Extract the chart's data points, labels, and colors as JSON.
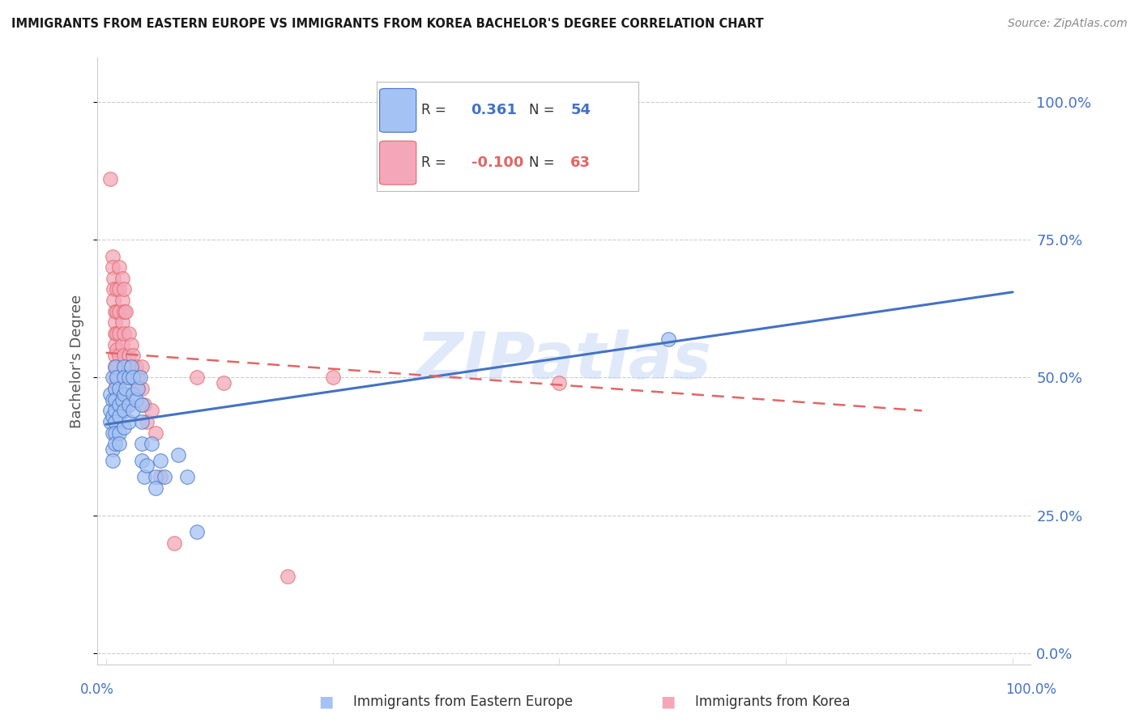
{
  "title": "IMMIGRANTS FROM EASTERN EUROPE VS IMMIGRANTS FROM KOREA BACHELOR'S DEGREE CORRELATION CHART",
  "source": "Source: ZipAtlas.com",
  "ylabel": "Bachelor's Degree",
  "watermark": "ZIPatlas",
  "legend_blue_r": "0.361",
  "legend_blue_n": "54",
  "legend_pink_r": "-0.100",
  "legend_pink_n": "63",
  "legend_label_blue": "Immigrants from Eastern Europe",
  "legend_label_pink": "Immigrants from Korea",
  "blue_fill": "#a4c2f4",
  "blue_edge": "#4472c4",
  "pink_fill": "#f4a7b9",
  "pink_edge": "#e06666",
  "axis_color": "#4472c4",
  "grid_color": "#cccccc",
  "blue_line_color": "#4472c4",
  "pink_line_color": "#e06666",
  "blue_scatter": [
    [
      0.005,
      0.44
    ],
    [
      0.005,
      0.47
    ],
    [
      0.005,
      0.42
    ],
    [
      0.007,
      0.5
    ],
    [
      0.007,
      0.46
    ],
    [
      0.007,
      0.43
    ],
    [
      0.007,
      0.4
    ],
    [
      0.007,
      0.37
    ],
    [
      0.007,
      0.35
    ],
    [
      0.01,
      0.52
    ],
    [
      0.01,
      0.48
    ],
    [
      0.01,
      0.46
    ],
    [
      0.01,
      0.44
    ],
    [
      0.01,
      0.42
    ],
    [
      0.01,
      0.4
    ],
    [
      0.01,
      0.38
    ],
    [
      0.012,
      0.5
    ],
    [
      0.015,
      0.48
    ],
    [
      0.015,
      0.45
    ],
    [
      0.015,
      0.43
    ],
    [
      0.015,
      0.4
    ],
    [
      0.015,
      0.38
    ],
    [
      0.018,
      0.46
    ],
    [
      0.02,
      0.52
    ],
    [
      0.02,
      0.5
    ],
    [
      0.02,
      0.47
    ],
    [
      0.02,
      0.44
    ],
    [
      0.02,
      0.41
    ],
    [
      0.022,
      0.48
    ],
    [
      0.025,
      0.5
    ],
    [
      0.025,
      0.45
    ],
    [
      0.025,
      0.42
    ],
    [
      0.028,
      0.52
    ],
    [
      0.03,
      0.5
    ],
    [
      0.03,
      0.47
    ],
    [
      0.03,
      0.44
    ],
    [
      0.033,
      0.46
    ],
    [
      0.035,
      0.48
    ],
    [
      0.038,
      0.5
    ],
    [
      0.04,
      0.45
    ],
    [
      0.04,
      0.42
    ],
    [
      0.04,
      0.38
    ],
    [
      0.04,
      0.35
    ],
    [
      0.042,
      0.32
    ],
    [
      0.045,
      0.34
    ],
    [
      0.05,
      0.38
    ],
    [
      0.055,
      0.32
    ],
    [
      0.055,
      0.3
    ],
    [
      0.06,
      0.35
    ],
    [
      0.065,
      0.32
    ],
    [
      0.08,
      0.36
    ],
    [
      0.09,
      0.32
    ],
    [
      0.1,
      0.22
    ],
    [
      0.62,
      0.57
    ]
  ],
  "pink_scatter": [
    [
      0.005,
      0.86
    ],
    [
      0.007,
      0.72
    ],
    [
      0.007,
      0.7
    ],
    [
      0.008,
      0.68
    ],
    [
      0.008,
      0.66
    ],
    [
      0.008,
      0.64
    ],
    [
      0.01,
      0.62
    ],
    [
      0.01,
      0.6
    ],
    [
      0.01,
      0.58
    ],
    [
      0.01,
      0.56
    ],
    [
      0.01,
      0.54
    ],
    [
      0.01,
      0.52
    ],
    [
      0.01,
      0.5
    ],
    [
      0.01,
      0.48
    ],
    [
      0.012,
      0.66
    ],
    [
      0.012,
      0.62
    ],
    [
      0.012,
      0.58
    ],
    [
      0.012,
      0.55
    ],
    [
      0.012,
      0.52
    ],
    [
      0.012,
      0.49
    ],
    [
      0.012,
      0.46
    ],
    [
      0.015,
      0.7
    ],
    [
      0.015,
      0.66
    ],
    [
      0.015,
      0.62
    ],
    [
      0.015,
      0.58
    ],
    [
      0.015,
      0.54
    ],
    [
      0.015,
      0.5
    ],
    [
      0.015,
      0.47
    ],
    [
      0.015,
      0.44
    ],
    [
      0.018,
      0.68
    ],
    [
      0.018,
      0.64
    ],
    [
      0.018,
      0.6
    ],
    [
      0.018,
      0.56
    ],
    [
      0.02,
      0.66
    ],
    [
      0.02,
      0.62
    ],
    [
      0.02,
      0.58
    ],
    [
      0.02,
      0.54
    ],
    [
      0.02,
      0.5
    ],
    [
      0.02,
      0.47
    ],
    [
      0.022,
      0.62
    ],
    [
      0.025,
      0.58
    ],
    [
      0.025,
      0.54
    ],
    [
      0.025,
      0.5
    ],
    [
      0.028,
      0.56
    ],
    [
      0.028,
      0.52
    ],
    [
      0.03,
      0.54
    ],
    [
      0.03,
      0.5
    ],
    [
      0.033,
      0.52
    ],
    [
      0.033,
      0.48
    ],
    [
      0.035,
      0.5
    ],
    [
      0.04,
      0.52
    ],
    [
      0.04,
      0.48
    ],
    [
      0.042,
      0.45
    ],
    [
      0.045,
      0.42
    ],
    [
      0.05,
      0.44
    ],
    [
      0.055,
      0.4
    ],
    [
      0.06,
      0.32
    ],
    [
      0.075,
      0.2
    ],
    [
      0.1,
      0.5
    ],
    [
      0.13,
      0.49
    ],
    [
      0.2,
      0.14
    ],
    [
      0.25,
      0.5
    ],
    [
      0.5,
      0.49
    ]
  ],
  "blue_line_x": [
    0.0,
    1.0
  ],
  "blue_line_y": [
    0.415,
    0.655
  ],
  "pink_line_x": [
    0.0,
    0.9
  ],
  "pink_line_y": [
    0.545,
    0.44
  ],
  "xlim": [
    0.0,
    1.0
  ],
  "ylim": [
    0.0,
    1.0
  ],
  "yticks": [
    0.0,
    0.25,
    0.5,
    0.75,
    1.0
  ],
  "ytick_labels": [
    "0.0%",
    "25.0%",
    "50.0%",
    "75.0%",
    "100.0%"
  ],
  "xtick_positions": [
    0.0,
    0.25,
    0.5,
    0.75,
    1.0
  ]
}
